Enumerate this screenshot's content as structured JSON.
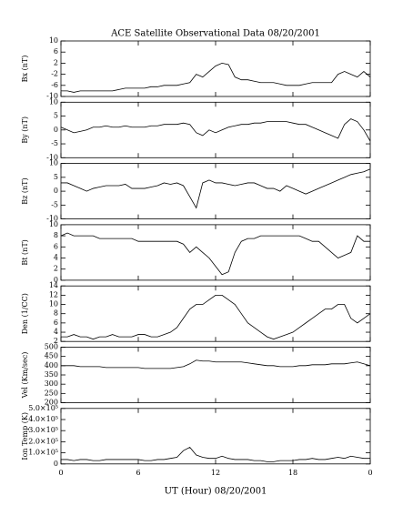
{
  "chart_data": {
    "type": "line",
    "title": "ACE Satellite Observational Data   08/20/2001",
    "xlabel": "UT (Hour)   08/20/2001",
    "xlim": [
      0,
      24
    ],
    "xticks": [
      0,
      6,
      12,
      18,
      {
        "value": 24,
        "label": "0"
      }
    ],
    "color": "#000000",
    "x": [
      0,
      0.5,
      1,
      1.5,
      2,
      2.5,
      3,
      3.5,
      4,
      4.5,
      5,
      5.5,
      6,
      6.5,
      7,
      7.5,
      8,
      8.5,
      9,
      9.5,
      10,
      10.5,
      11,
      11.5,
      12,
      12.5,
      13,
      13.5,
      14,
      14.5,
      15,
      15.5,
      16,
      16.5,
      17,
      17.5,
      18,
      18.5,
      19,
      19.5,
      20,
      20.5,
      21,
      21.5,
      22,
      22.5,
      23,
      23.5,
      24
    ],
    "panels": [
      {
        "ylabel": "Bx (nT)",
        "ylim": [
          -10,
          10
        ],
        "yticks": [
          -10,
          -6,
          -2,
          2,
          6,
          10
        ],
        "values": [
          -8,
          -8,
          -8.5,
          -8,
          -8,
          -8,
          -8,
          -8,
          -8,
          -7.5,
          -7,
          -7,
          -7,
          -7,
          -6.5,
          -6.5,
          -6,
          -6,
          -6,
          -5.5,
          -5,
          -2,
          -3,
          -1,
          1,
          2,
          1.5,
          -3,
          -4,
          -4,
          -4.5,
          -5,
          -5,
          -5,
          -5.5,
          -6,
          -6,
          -6,
          -5.5,
          -5,
          -5,
          -5,
          -5,
          -2,
          -1,
          -2,
          -3,
          -1,
          -3
        ]
      },
      {
        "ylabel": "By (nT)",
        "ylim": [
          -10,
          10
        ],
        "yticks": [
          -10,
          -5,
          0,
          5,
          10
        ],
        "values": [
          1,
          0,
          -1,
          -0.5,
          0,
          1,
          1,
          1.5,
          1,
          1,
          1.5,
          1,
          1,
          1,
          1.5,
          1.5,
          2,
          2,
          2,
          2.5,
          2,
          -1,
          -2,
          0,
          -1,
          0,
          1,
          1.5,
          2,
          2,
          2.5,
          2.5,
          3,
          3,
          3,
          3,
          2.5,
          2,
          2,
          1,
          0,
          -1,
          -2,
          -3,
          2,
          4,
          3,
          0,
          -4
        ]
      },
      {
        "ylabel": "Bz (nT)",
        "ylim": [
          -10,
          10
        ],
        "yticks": [
          -10,
          -5,
          0,
          5,
          10
        ],
        "values": [
          3,
          3,
          2,
          1,
          0,
          1,
          1.5,
          2,
          2,
          2,
          2.5,
          1,
          1,
          1,
          1.5,
          2,
          3,
          2.5,
          3,
          2,
          -2,
          -6,
          3,
          4,
          3,
          3,
          2.5,
          2,
          2.5,
          3,
          3,
          2,
          1,
          1,
          0,
          2,
          1,
          0,
          -1,
          0,
          1,
          2,
          3,
          4,
          5,
          6,
          6.5,
          7,
          8
        ]
      },
      {
        "ylabel": "Bt (nT)",
        "ylim": [
          0,
          10
        ],
        "yticks": [
          0,
          2,
          4,
          6,
          8,
          10
        ],
        "values": [
          8,
          8.5,
          8,
          8,
          8,
          8,
          7.5,
          7.5,
          7.5,
          7.5,
          7.5,
          7.5,
          7,
          7,
          7,
          7,
          7,
          7,
          7,
          6.5,
          5,
          6,
          5,
          4,
          2.5,
          1,
          1.5,
          5,
          7,
          7.5,
          7.5,
          8,
          8,
          8,
          8,
          8,
          8,
          8,
          7.5,
          7,
          7,
          6,
          5,
          4,
          4.5,
          5,
          8,
          7,
          7
        ]
      },
      {
        "ylabel": "Den (1/CC)",
        "ylim": [
          2,
          14
        ],
        "yticks": [
          2,
          4,
          6,
          8,
          10,
          12,
          14
        ],
        "values": [
          3,
          3,
          3.5,
          3,
          3,
          2.5,
          3,
          3,
          3.5,
          3,
          3,
          3,
          3.5,
          3.5,
          3,
          3,
          3.5,
          4,
          5,
          7,
          9,
          10,
          10,
          11,
          12,
          12,
          11,
          10,
          8,
          6,
          5,
          4,
          3,
          2.5,
          3,
          3.5,
          4,
          5,
          6,
          7,
          8,
          9,
          9,
          10,
          10,
          7,
          6,
          7,
          8
        ]
      },
      {
        "ylabel": "Vel (Km/sec)",
        "ylim": [
          200,
          500
        ],
        "yticks": [
          200,
          250,
          300,
          350,
          400,
          450,
          500
        ],
        "values": [
          400,
          400,
          400,
          395,
          395,
          395,
          395,
          390,
          390,
          390,
          390,
          390,
          390,
          385,
          385,
          385,
          385,
          385,
          390,
          395,
          410,
          430,
          425,
          425,
          420,
          420,
          420,
          420,
          420,
          415,
          410,
          405,
          400,
          400,
          395,
          395,
          395,
          400,
          400,
          405,
          405,
          405,
          410,
          410,
          410,
          415,
          420,
          410,
          400
        ]
      },
      {
        "ylabel": "Ion Temp (K)",
        "ylim": [
          0,
          500000
        ],
        "yticks": [
          0,
          {
            "value": 100000,
            "label": "1.0×10⁵"
          },
          {
            "value": 200000,
            "label": "2.0×10⁵"
          },
          {
            "value": 300000,
            "label": "3.0×10⁵"
          },
          {
            "value": 400000,
            "label": "4.0×10⁵"
          },
          {
            "value": 500000,
            "label": "5.0×10⁵"
          }
        ],
        "values": [
          40000,
          40000,
          30000,
          40000,
          40000,
          30000,
          30000,
          40000,
          40000,
          40000,
          40000,
          40000,
          40000,
          30000,
          30000,
          40000,
          40000,
          50000,
          60000,
          120000,
          150000,
          80000,
          60000,
          50000,
          50000,
          70000,
          50000,
          40000,
          40000,
          40000,
          30000,
          30000,
          20000,
          20000,
          30000,
          30000,
          30000,
          40000,
          40000,
          50000,
          40000,
          40000,
          50000,
          60000,
          50000,
          70000,
          60000,
          50000,
          50000
        ]
      }
    ]
  }
}
